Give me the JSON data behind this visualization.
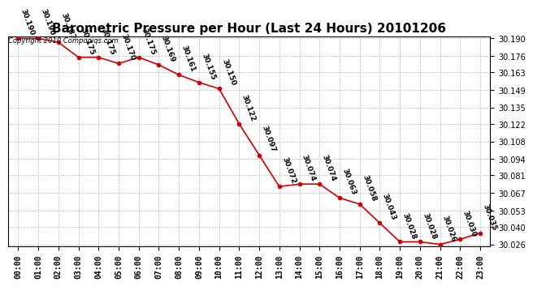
{
  "title": "Barometric Pressure per Hour (Last 24 Hours) 20101206",
  "hours": [
    0,
    1,
    2,
    3,
    4,
    5,
    6,
    7,
    8,
    9,
    10,
    11,
    12,
    13,
    14,
    15,
    16,
    17,
    18,
    19,
    20,
    21,
    22,
    23
  ],
  "hour_labels": [
    "00:00",
    "01:00",
    "02:00",
    "03:00",
    "04:00",
    "05:00",
    "06:00",
    "07:00",
    "08:00",
    "09:00",
    "10:00",
    "11:00",
    "12:00",
    "13:00",
    "14:00",
    "15:00",
    "16:00",
    "17:00",
    "18:00",
    "19:00",
    "20:00",
    "21:00",
    "22:00",
    "23:00"
  ],
  "values": [
    30.19,
    30.19,
    30.187,
    30.175,
    30.175,
    30.17,
    30.175,
    30.169,
    30.161,
    30.155,
    30.15,
    30.122,
    30.097,
    30.072,
    30.074,
    30.074,
    30.063,
    30.058,
    30.043,
    30.028,
    30.028,
    30.026,
    30.03,
    30.035
  ],
  "value_labels": [
    "30.190",
    "30.190",
    "30.187",
    "30.175",
    "30.175",
    "30.170",
    "30.175",
    "30.169",
    "30.161",
    "30.155",
    "30.150",
    "30.122",
    "30.097",
    "30.072",
    "30.074",
    "30.074",
    "30.063",
    "30.058",
    "30.043",
    "30.028",
    "30.028",
    "30.026",
    "30.030",
    "30.035"
  ],
  "ylim_min": 30.0245,
  "ylim_max": 30.1915,
  "yticks": [
    30.026,
    30.04,
    30.053,
    30.067,
    30.081,
    30.094,
    30.108,
    30.122,
    30.135,
    30.149,
    30.163,
    30.176,
    30.19
  ],
  "line_color": "#cc0000",
  "marker_color": "#cc0000",
  "bg_color": "#ffffff",
  "grid_color": "#bbbbbb",
  "copyright_text": "Copyright 2010 Compuniqs.com",
  "title_fontsize": 11,
  "label_fontsize": 6.5,
  "tick_fontsize": 7,
  "copyright_fontsize": 6
}
